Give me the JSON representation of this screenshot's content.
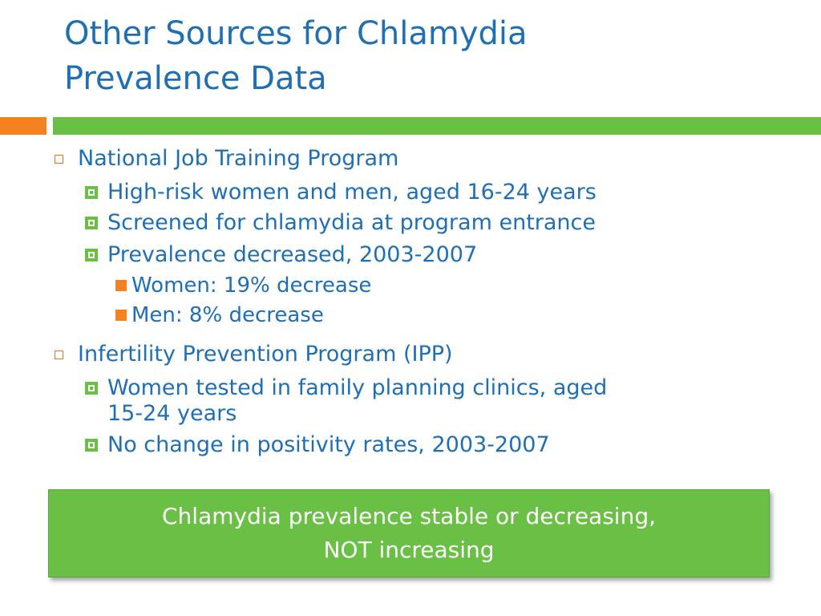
{
  "slide": {
    "title_line1": "Other Sources for Chlamydia",
    "title_line2": "Prevalence Data",
    "colors": {
      "title": "#1f6fb5",
      "accent_orange": "#f58220",
      "accent_green": "#6abf45"
    },
    "sections": [
      {
        "heading": "National Job Training Program",
        "items": [
          {
            "text": "High-risk women and men, aged 16-24 years"
          },
          {
            "text": "Screened for chlamydia at program entrance"
          },
          {
            "text": "Prevalence decreased, 2003-2007",
            "subitems": [
              "Women: 19% decrease",
              "Men: 8% decrease"
            ]
          }
        ]
      },
      {
        "heading": "Infertility Prevention Program (IPP)",
        "items": [
          {
            "text_line1": "Women tested in family planning clinics, aged",
            "text_line2": "15-24 years"
          },
          {
            "text": "No change in positivity rates, 2003-2007"
          }
        ]
      }
    ],
    "callout": {
      "line1": "Chlamydia prevalence stable or decreasing,",
      "line2": "NOT increasing"
    }
  }
}
